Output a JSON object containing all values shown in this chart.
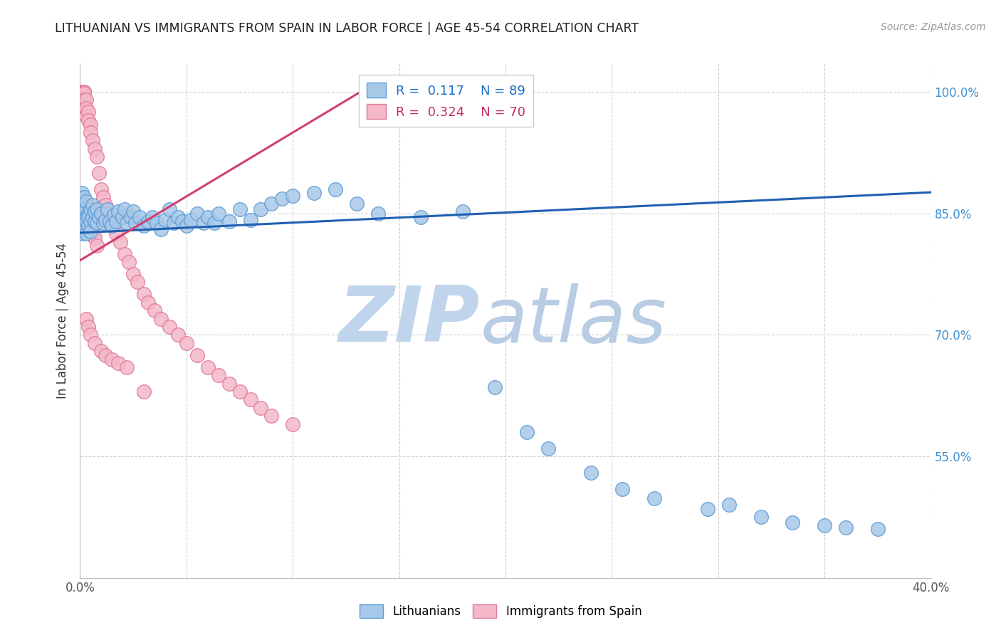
{
  "title": "LITHUANIAN VS IMMIGRANTS FROM SPAIN IN LABOR FORCE | AGE 45-54 CORRELATION CHART",
  "source": "Source: ZipAtlas.com",
  "ylabel": "In Labor Force | Age 45-54",
  "xlim": [
    0.0,
    0.4
  ],
  "ylim": [
    0.4,
    1.035
  ],
  "blue_R": 0.117,
  "blue_N": 89,
  "pink_R": 0.324,
  "pink_N": 70,
  "blue_fill": "#a8c8e8",
  "blue_edge": "#5b9bd5",
  "pink_fill": "#f4b8c8",
  "pink_edge": "#e07898",
  "blue_line": "#2060b0",
  "pink_line": "#d04070",
  "watermark_zip_color": "#c8d8f0",
  "watermark_atlas_color": "#b0c8e8",
  "right_axis_color": "#4090d0",
  "grid_color": "#d0d0d0",
  "background": "#ffffff",
  "blue_scatter_x": [
    0.001,
    0.001,
    0.001,
    0.001,
    0.001,
    0.001,
    0.001,
    0.001,
    0.002,
    0.002,
    0.002,
    0.002,
    0.002,
    0.003,
    0.003,
    0.003,
    0.003,
    0.004,
    0.004,
    0.004,
    0.005,
    0.005,
    0.005,
    0.006,
    0.006,
    0.007,
    0.007,
    0.008,
    0.008,
    0.009,
    0.01,
    0.011,
    0.012,
    0.013,
    0.014,
    0.015,
    0.016,
    0.017,
    0.018,
    0.02,
    0.021,
    0.022,
    0.024,
    0.025,
    0.026,
    0.028,
    0.03,
    0.032,
    0.034,
    0.036,
    0.038,
    0.04,
    0.042,
    0.044,
    0.046,
    0.048,
    0.05,
    0.052,
    0.055,
    0.058,
    0.06,
    0.063,
    0.065,
    0.07,
    0.075,
    0.08,
    0.085,
    0.09,
    0.095,
    0.1,
    0.11,
    0.12,
    0.13,
    0.14,
    0.16,
    0.18,
    0.195,
    0.21,
    0.22,
    0.24,
    0.255,
    0.27,
    0.295,
    0.305,
    0.32,
    0.335,
    0.35,
    0.36,
    0.375
  ],
  "blue_scatter_y": [
    0.84,
    0.85,
    0.855,
    0.86,
    0.87,
    0.875,
    0.83,
    0.825,
    0.845,
    0.86,
    0.87,
    0.855,
    0.83,
    0.84,
    0.855,
    0.865,
    0.825,
    0.835,
    0.85,
    0.845,
    0.855,
    0.84,
    0.828,
    0.845,
    0.86,
    0.84,
    0.852,
    0.838,
    0.855,
    0.845,
    0.85,
    0.838,
    0.842,
    0.855,
    0.84,
    0.835,
    0.848,
    0.84,
    0.852,
    0.845,
    0.855,
    0.838,
    0.845,
    0.852,
    0.838,
    0.845,
    0.835,
    0.84,
    0.845,
    0.838,
    0.83,
    0.842,
    0.855,
    0.838,
    0.845,
    0.84,
    0.835,
    0.842,
    0.85,
    0.838,
    0.845,
    0.838,
    0.85,
    0.84,
    0.855,
    0.842,
    0.855,
    0.862,
    0.868,
    0.872,
    0.875,
    0.88,
    0.862,
    0.85,
    0.845,
    0.852,
    0.635,
    0.58,
    0.56,
    0.53,
    0.51,
    0.498,
    0.485,
    0.49,
    0.475,
    0.468,
    0.465,
    0.462,
    0.46
  ],
  "pink_scatter_x": [
    0.001,
    0.001,
    0.001,
    0.001,
    0.001,
    0.001,
    0.001,
    0.001,
    0.001,
    0.001,
    0.002,
    0.002,
    0.002,
    0.002,
    0.002,
    0.002,
    0.003,
    0.003,
    0.003,
    0.003,
    0.004,
    0.004,
    0.004,
    0.005,
    0.005,
    0.005,
    0.006,
    0.006,
    0.007,
    0.007,
    0.008,
    0.008,
    0.009,
    0.01,
    0.011,
    0.012,
    0.013,
    0.015,
    0.017,
    0.019,
    0.021,
    0.023,
    0.025,
    0.027,
    0.03,
    0.032,
    0.035,
    0.038,
    0.042,
    0.046,
    0.05,
    0.055,
    0.06,
    0.065,
    0.07,
    0.075,
    0.08,
    0.085,
    0.09,
    0.1,
    0.003,
    0.004,
    0.005,
    0.007,
    0.01,
    0.012,
    0.015,
    0.018,
    0.022,
    0.03
  ],
  "pink_scatter_y": [
    1.0,
    1.0,
    1.0,
    1.0,
    0.998,
    0.996,
    0.99,
    0.985,
    0.86,
    0.84,
    1.0,
    1.0,
    0.998,
    0.99,
    0.855,
    0.83,
    0.99,
    0.98,
    0.97,
    0.84,
    0.975,
    0.965,
    0.84,
    0.96,
    0.95,
    0.83,
    0.94,
    0.825,
    0.93,
    0.82,
    0.92,
    0.81,
    0.9,
    0.88,
    0.87,
    0.86,
    0.85,
    0.835,
    0.825,
    0.815,
    0.8,
    0.79,
    0.775,
    0.765,
    0.75,
    0.74,
    0.73,
    0.72,
    0.71,
    0.7,
    0.69,
    0.675,
    0.66,
    0.65,
    0.64,
    0.63,
    0.62,
    0.61,
    0.6,
    0.59,
    0.72,
    0.71,
    0.7,
    0.69,
    0.68,
    0.675,
    0.67,
    0.665,
    0.66,
    0.63
  ],
  "blue_trend_x": [
    0.0,
    0.4
  ],
  "blue_trend_y": [
    0.826,
    0.876
  ],
  "pink_trend_x": [
    0.0,
    0.135
  ],
  "pink_trend_y": [
    0.792,
    1.005
  ]
}
